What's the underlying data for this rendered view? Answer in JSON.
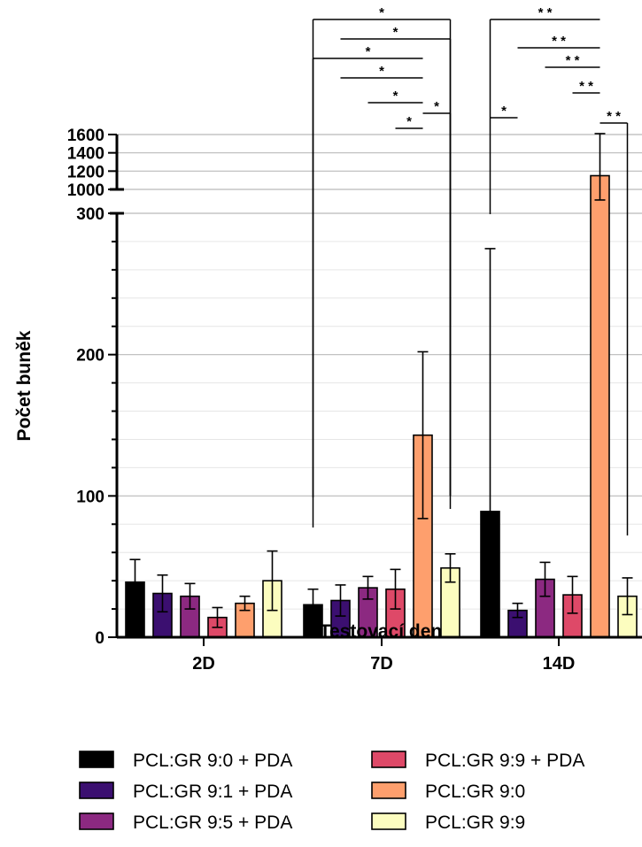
{
  "chart_data": {
    "type": "bar",
    "title": "",
    "xlabel": "Testovací den",
    "ylabel": "Počet buněk",
    "categories": [
      "2D",
      "7D",
      "14D"
    ],
    "y_axis": {
      "segments": [
        {
          "range": [
            0,
            300
          ],
          "ticks": [
            0,
            100,
            200,
            300
          ],
          "minor_step": 20
        },
        {
          "range": [
            1000,
            1600
          ],
          "ticks": [
            1000,
            1200,
            1400,
            1600
          ]
        }
      ],
      "break_between": [
        300,
        1000
      ],
      "grid": true
    },
    "series": [
      {
        "name": "PCL:GR 9:0 + PDA",
        "color": "#000000",
        "values": [
          39,
          23,
          89
        ],
        "errors": [
          16,
          11,
          186
        ]
      },
      {
        "name": "PCL:GR 9:1 + PDA",
        "color": "#3b0f70",
        "values": [
          31,
          26,
          19
        ],
        "errors": [
          13,
          11,
          5
        ]
      },
      {
        "name": "PCL:GR 9:5 + PDA",
        "color": "#8c2981",
        "values": [
          29,
          35,
          41
        ],
        "errors": [
          9,
          8,
          12
        ]
      },
      {
        "name": "PCL:GR 9:9 + PDA",
        "color": "#de4968",
        "values": [
          14,
          34,
          30
        ],
        "errors": [
          7,
          14,
          13
        ]
      },
      {
        "name": "PCL:GR 9:0",
        "color": "#fe9f6d",
        "values": [
          24,
          143,
          1150
        ],
        "errors": [
          5,
          59,
          460
        ]
      },
      {
        "name": "PCL:GR 9:9",
        "color": "#fcfdbf",
        "values": [
          40,
          49,
          29
        ],
        "errors": [
          21,
          10,
          13
        ]
      }
    ],
    "significance": [
      {
        "category": "7D",
        "from_series": 0,
        "to_series": 5,
        "label": "*"
      },
      {
        "category": "7D",
        "from_series": 1,
        "to_series": 5,
        "label": "*"
      },
      {
        "category": "7D",
        "from_series": 0,
        "to_series": 4,
        "label": "*"
      },
      {
        "category": "7D",
        "from_series": 1,
        "to_series": 4,
        "label": "*"
      },
      {
        "category": "7D",
        "from_series": 2,
        "to_series": 4,
        "label": "*"
      },
      {
        "category": "7D",
        "from_series": 4,
        "to_series": 5,
        "label": "*"
      },
      {
        "category": "7D",
        "from_series": 3,
        "to_series": 4,
        "label": "*"
      },
      {
        "category": "14D",
        "from_series": 0,
        "to_series": 4,
        "label": "* *"
      },
      {
        "category": "14D",
        "from_series": 1,
        "to_series": 4,
        "label": "* *"
      },
      {
        "category": "14D",
        "from_series": 2,
        "to_series": 4,
        "label": "* *"
      },
      {
        "category": "14D",
        "from_series": 3,
        "to_series": 4,
        "label": "* *"
      },
      {
        "category": "14D",
        "from_series": 0,
        "to_series": 1,
        "label": "*"
      },
      {
        "category": "14D",
        "from_series": 4,
        "to_series": 5,
        "label": "* *"
      }
    ],
    "legend": {
      "position": "bottom",
      "columns": 2
    }
  }
}
